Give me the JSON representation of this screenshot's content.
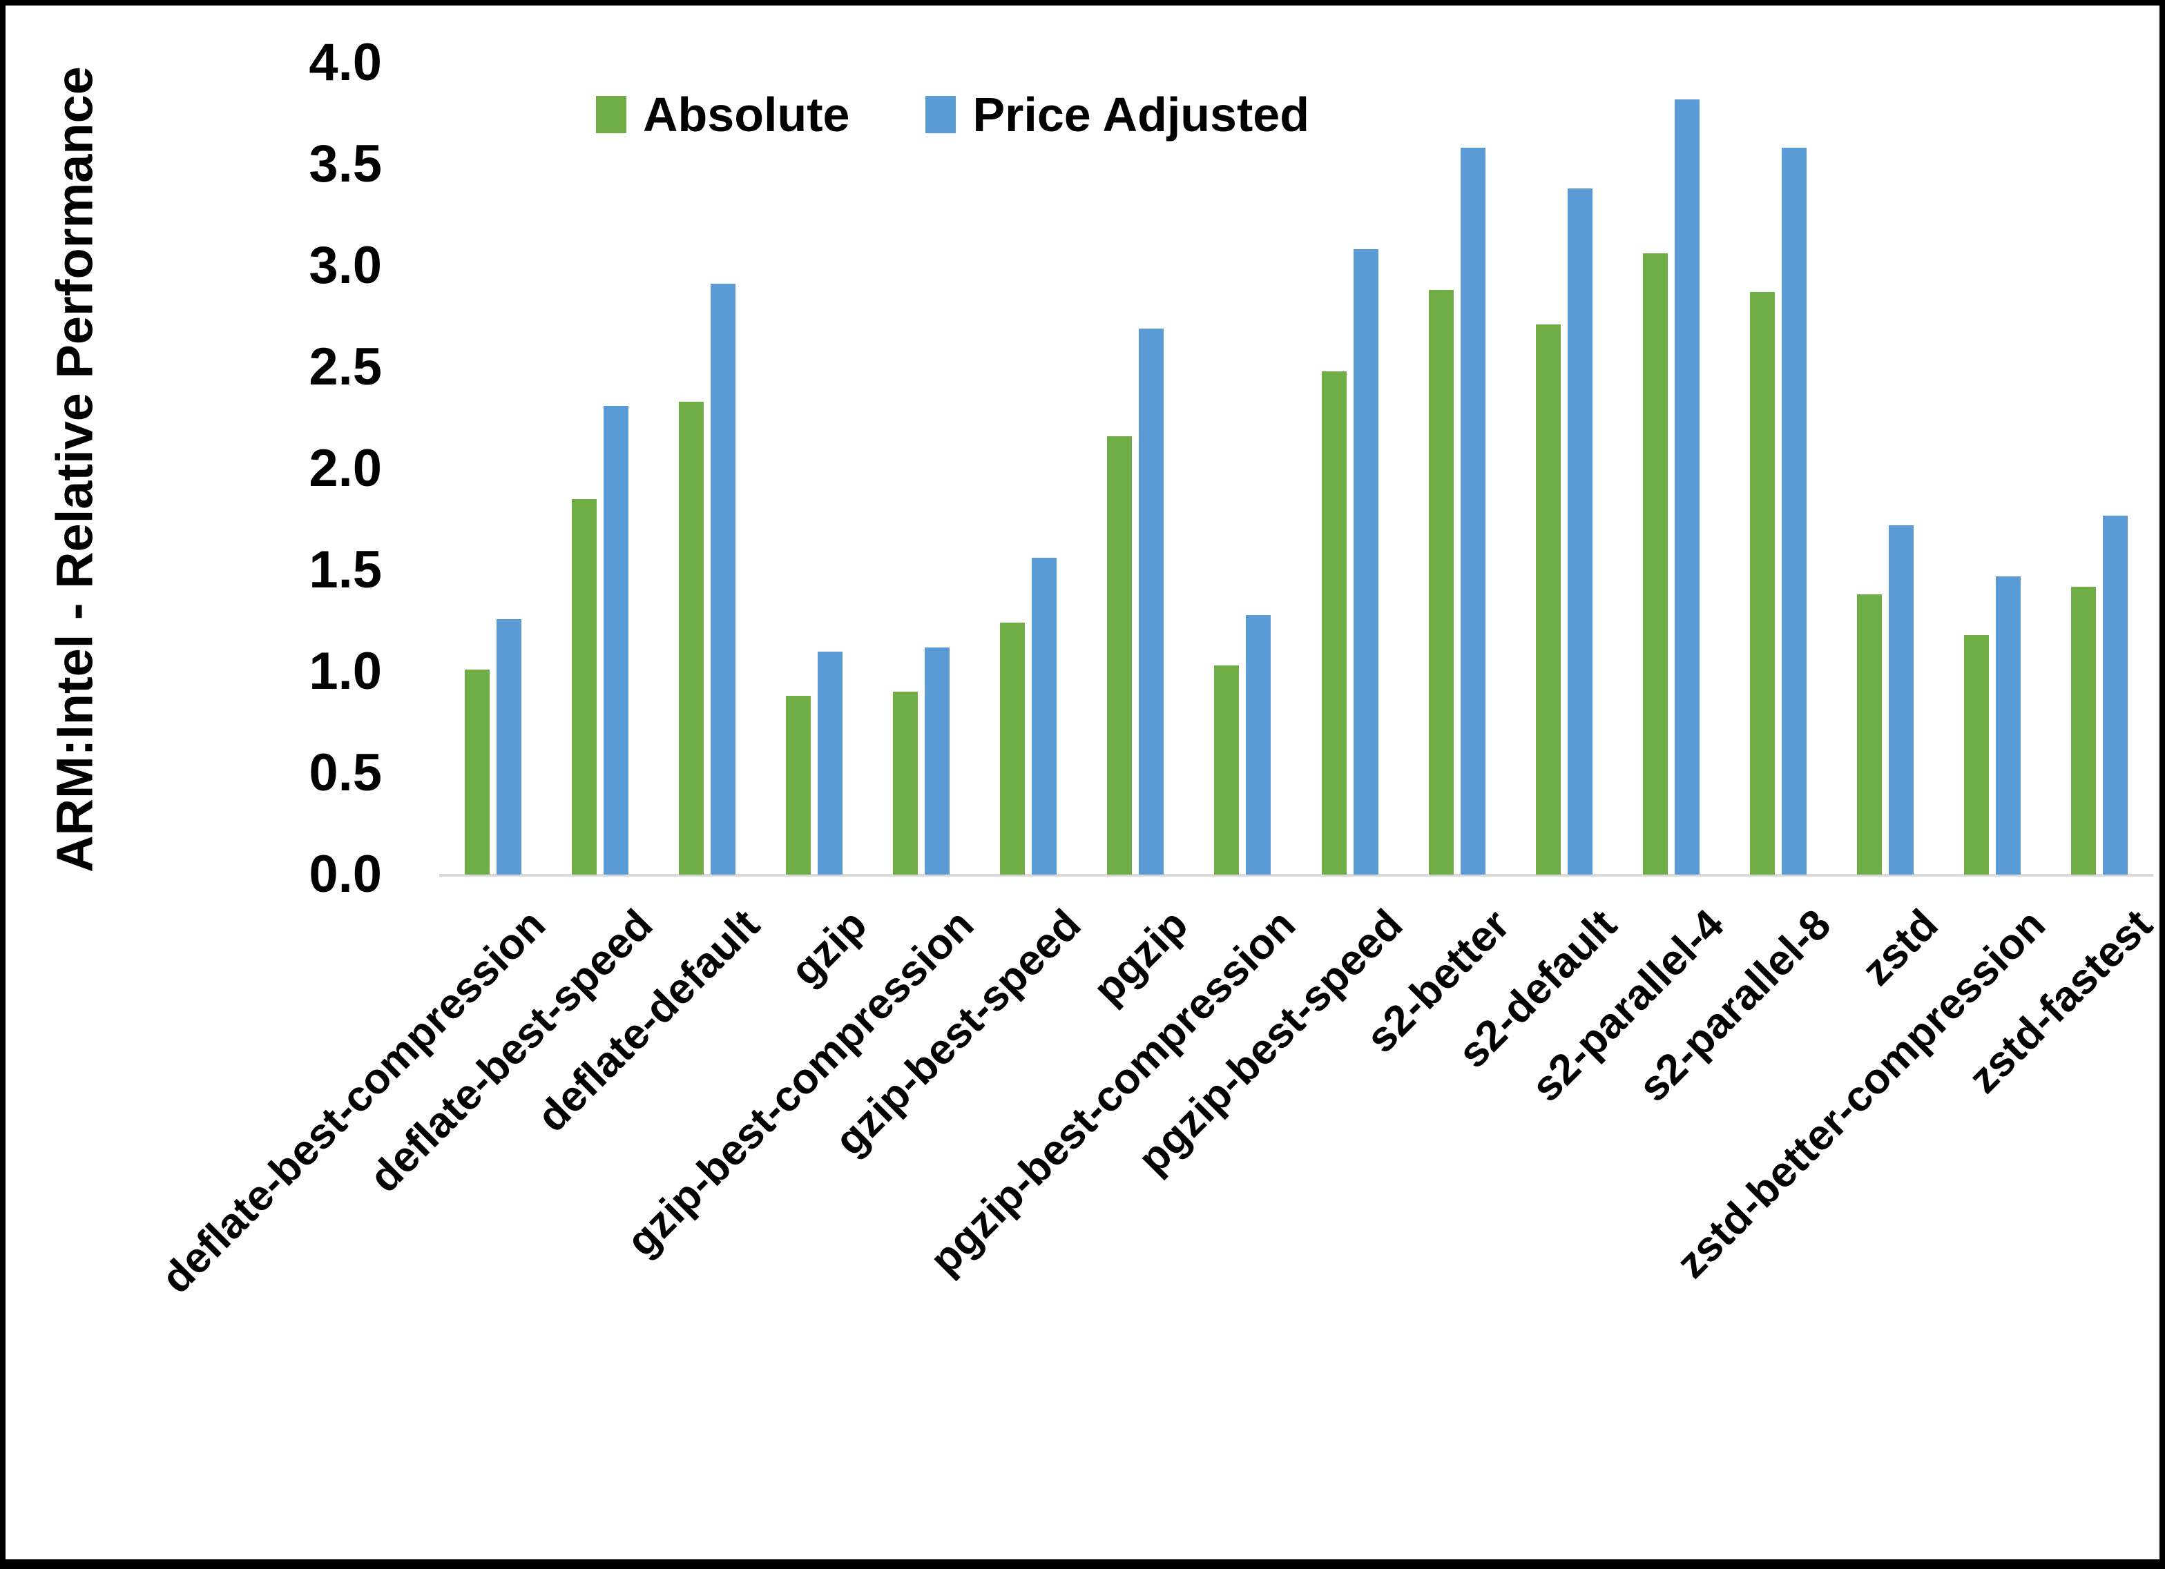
{
  "page": {
    "background": "#ffffff",
    "border_color": "#000000"
  },
  "chart_data": {
    "type": "bar",
    "title": "",
    "xlabel": "",
    "ylabel": "ARM:Intel - Relative Performance",
    "ylim": [
      0.0,
      4.0
    ],
    "ytick_step": 0.5,
    "yticks": [
      "0.0",
      "0.5",
      "1.0",
      "1.5",
      "2.0",
      "2.5",
      "3.0",
      "3.5",
      "4.0"
    ],
    "grid": false,
    "legend_position": "top-center",
    "axis_line_color": "#D9D9D9",
    "categories": [
      "deflate-best-compression",
      "deflate-best-speed",
      "deflate-default",
      "gzip",
      "gzip-best-compression",
      "gzip-best-speed",
      "pgzip",
      "pgzip-best-compression",
      "pgzip-best-speed",
      "s2-better",
      "s2-default",
      "s2-parallel-4",
      "s2-parallel-8",
      "zstd",
      "zstd-better-compression",
      "zstd-fastest"
    ],
    "series": [
      {
        "name": "Absolute",
        "color": "#70AD47",
        "values": [
          1.01,
          1.85,
          2.33,
          0.88,
          0.9,
          1.24,
          2.16,
          1.03,
          2.48,
          2.88,
          2.71,
          3.06,
          2.87,
          1.38,
          1.18,
          1.42
        ]
      },
      {
        "name": "Price Adjusted",
        "color": "#5B9BD5",
        "values": [
          1.26,
          2.31,
          2.91,
          1.1,
          1.12,
          1.56,
          2.69,
          1.28,
          3.08,
          3.58,
          3.38,
          3.82,
          3.58,
          1.72,
          1.47,
          1.77
        ]
      }
    ]
  }
}
